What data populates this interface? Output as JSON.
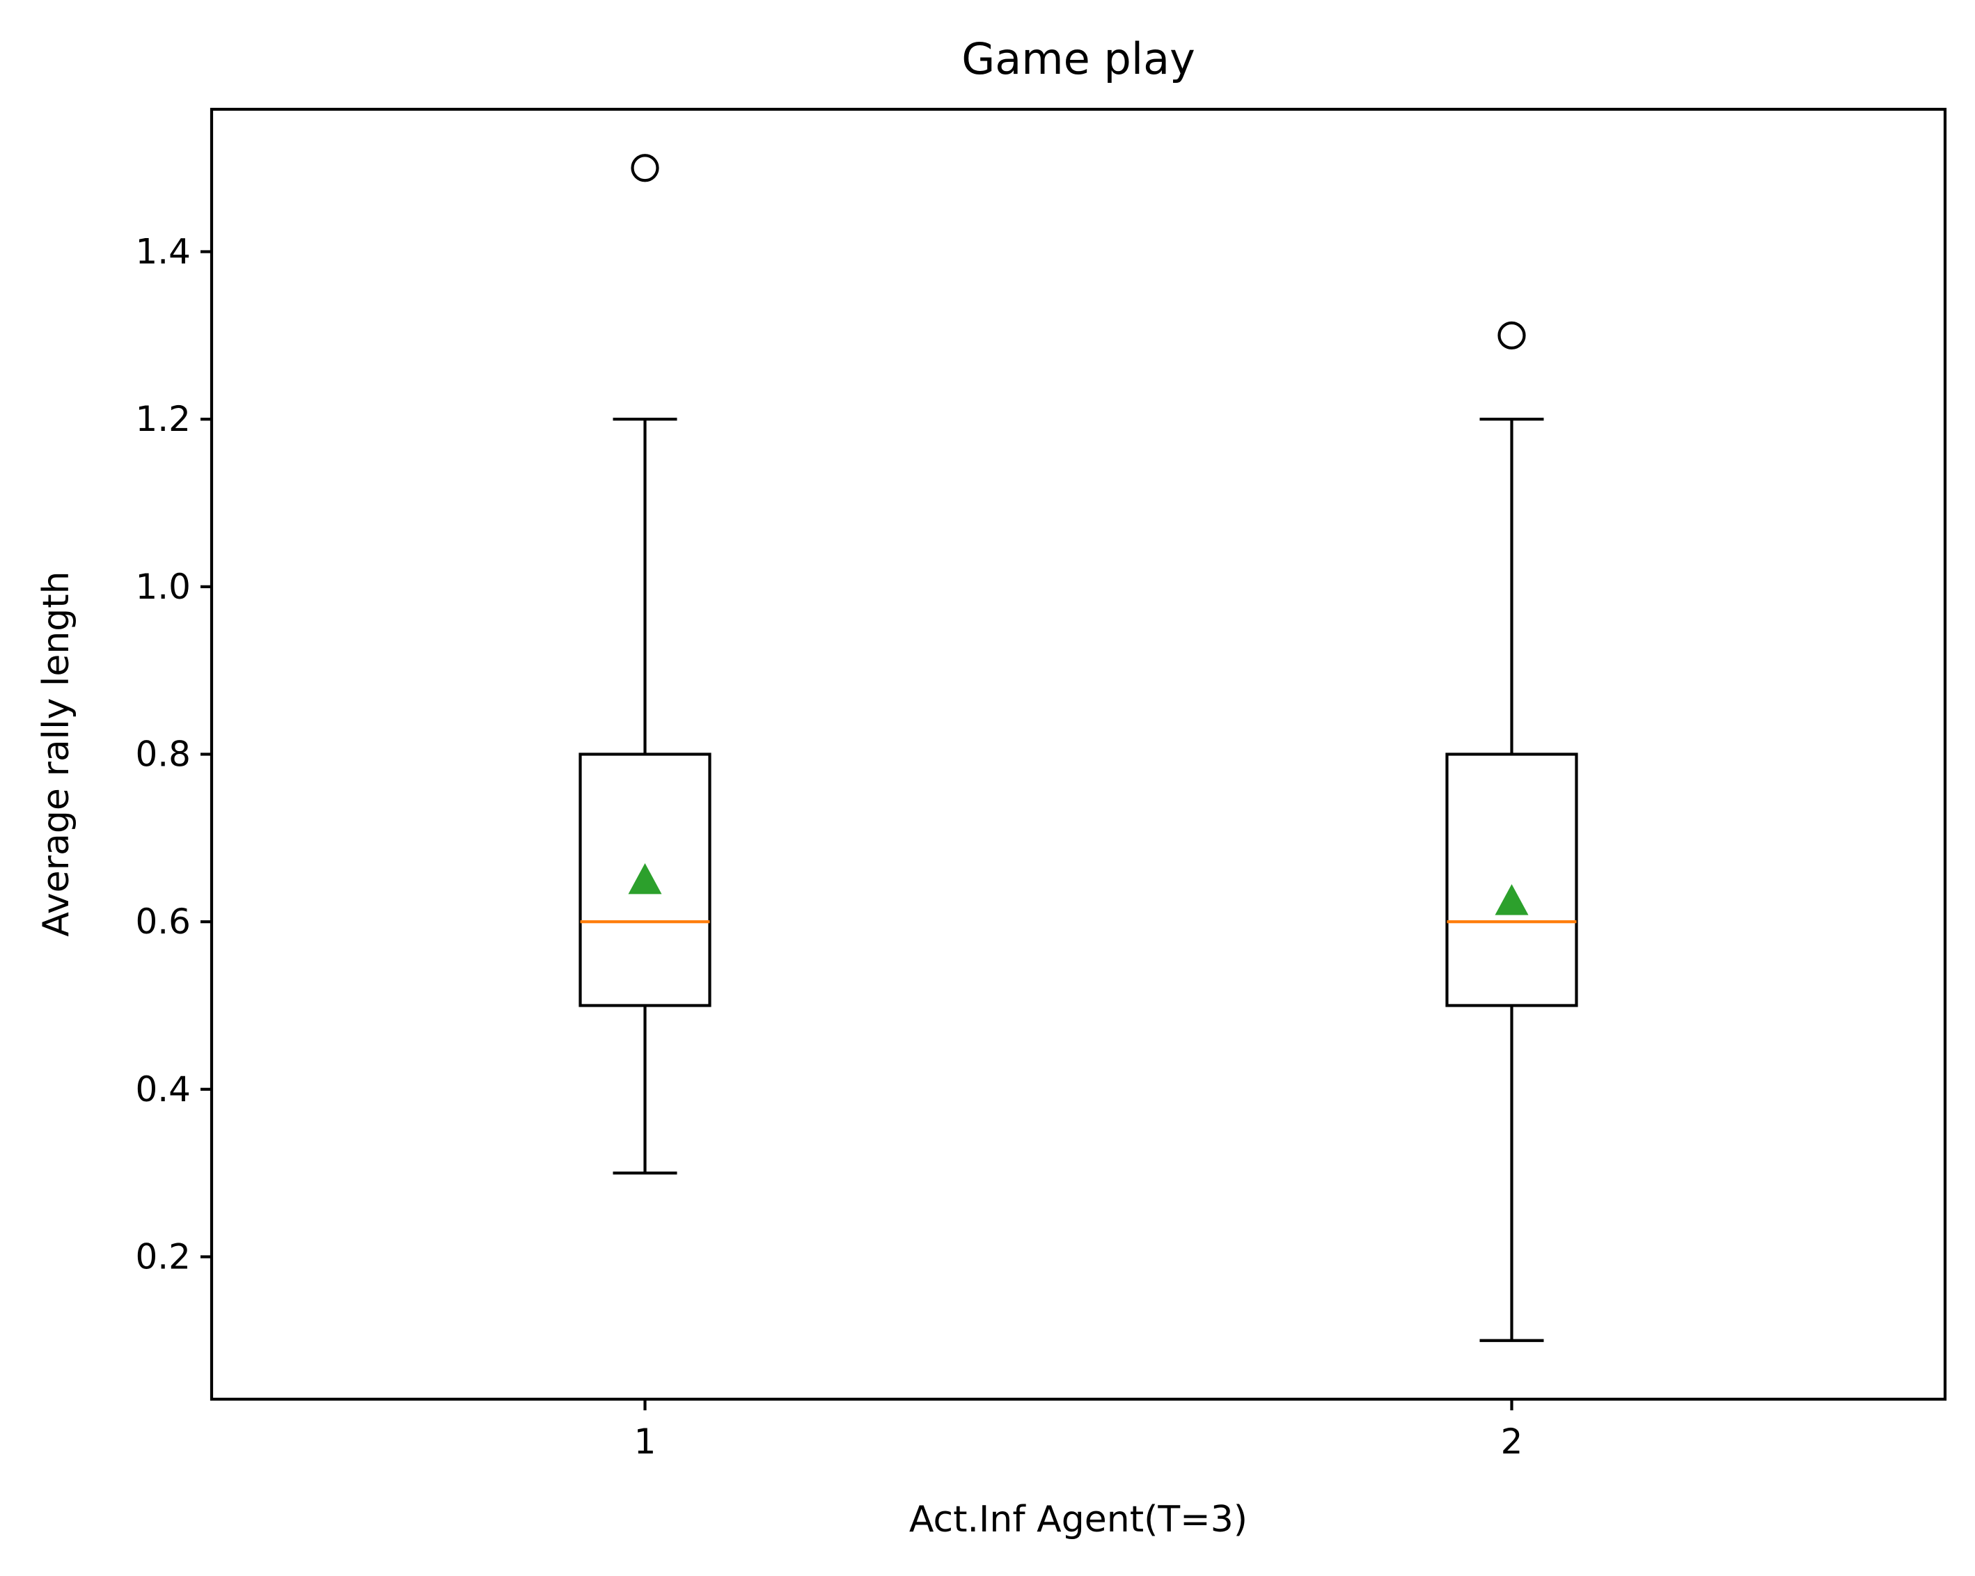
{
  "chart_data": {
    "type": "box",
    "title": "Game play",
    "xlabel": "Act.Inf Agent(T=3)",
    "ylabel": "Average rally length",
    "categories": [
      "1",
      "2"
    ],
    "ylim": [
      0.03,
      1.57
    ],
    "xlim": [
      0.5,
      2.5
    ],
    "y_ticks": [
      0.2,
      0.4,
      0.6,
      0.8,
      1.0,
      1.2,
      1.4
    ],
    "y_tick_labels": [
      "0.2",
      "0.4",
      "0.6",
      "0.8",
      "1.0",
      "1.2",
      "1.4"
    ],
    "grid": false,
    "boxes": [
      {
        "category": "1",
        "whisker_low": 0.3,
        "q1": 0.5,
        "median": 0.6,
        "q3": 0.8,
        "whisker_high": 1.2,
        "mean": 0.65,
        "outliers": [
          1.5
        ]
      },
      {
        "category": "2",
        "whisker_low": 0.1,
        "q1": 0.5,
        "median": 0.6,
        "q3": 0.8,
        "whisker_high": 1.2,
        "mean": 0.625,
        "outliers": [
          1.3
        ]
      }
    ],
    "colors": {
      "box": "#000000",
      "median": "#ff7f0e",
      "mean": "#2ca02c",
      "outlier": "#000000"
    }
  }
}
